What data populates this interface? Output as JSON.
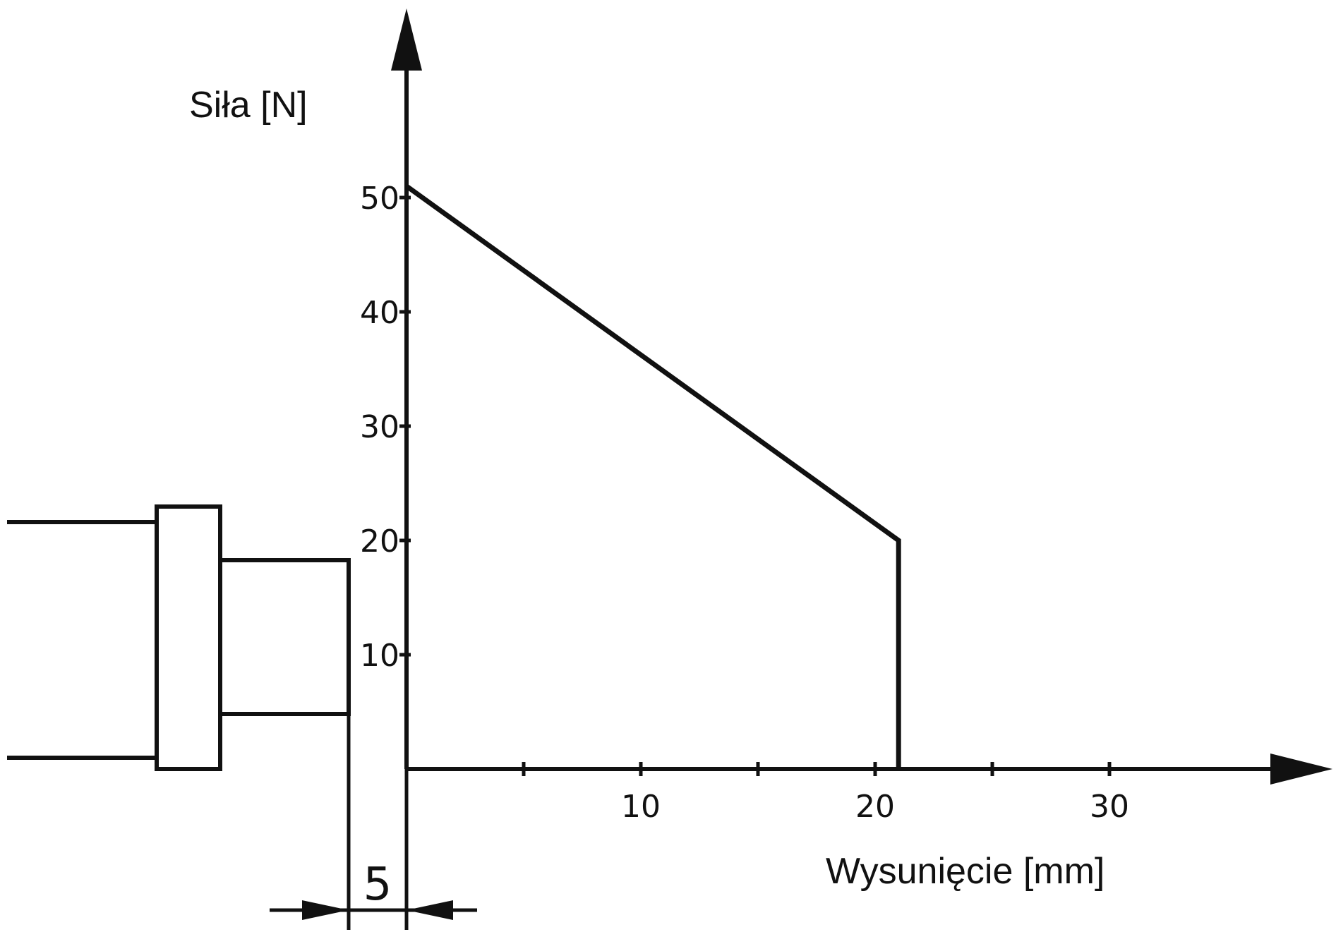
{
  "chart_data": {
    "type": "line",
    "title": "",
    "ylabel": "Siła  [N]",
    "xlabel": "Wysunięcie  [mm]",
    "xlim": [
      0,
      40
    ],
    "ylim": [
      0,
      55
    ],
    "x_ticks": [
      5,
      10,
      15,
      20,
      25,
      30
    ],
    "x_tick_labels": [
      {
        "value": 10,
        "label": "10"
      },
      {
        "value": 20,
        "label": "20"
      },
      {
        "value": 30,
        "label": "30"
      }
    ],
    "y_ticks": [
      {
        "value": 10,
        "label": "10"
      },
      {
        "value": 20,
        "label": "20"
      },
      {
        "value": 30,
        "label": "30"
      },
      {
        "value": 40,
        "label": "40"
      },
      {
        "value": 50,
        "label": "50"
      }
    ],
    "grid": false,
    "legend": "none",
    "series": [
      {
        "x": [
          0,
          21,
          21
        ],
        "y": [
          51,
          20,
          0
        ]
      }
    ],
    "annotation": {
      "dimension_label": "5",
      "dimension_value": 5
    }
  }
}
